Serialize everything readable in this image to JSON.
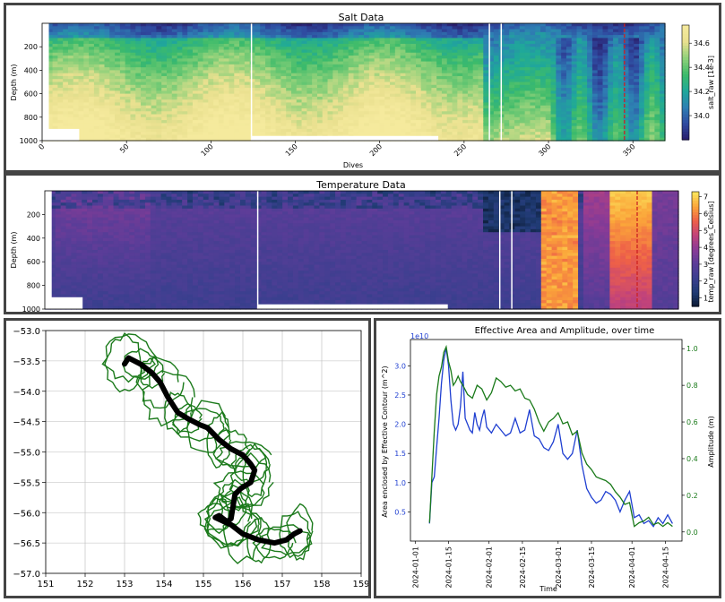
{
  "chart_data": [
    {
      "type": "heatmap",
      "title": "Salt Data",
      "xlabel": "Dives",
      "ylabel": "Depth (m)",
      "colorbar_label": "salt_raw [1e-3]",
      "xlim": [
        0,
        369
      ],
      "ylim": [
        1000,
        0
      ],
      "x_ticks": [
        "0",
        "50",
        "100",
        "150",
        "200",
        "250",
        "300",
        "350"
      ],
      "y_ticks": [
        "200",
        "400",
        "600",
        "800",
        "1000"
      ],
      "colorbar_ticks": [
        "34.0",
        "34.2",
        "34.4",
        "34.6"
      ],
      "colorbar_range": [
        33.8,
        34.75
      ],
      "colormap": [
        "#2a1d6b",
        "#2f4aa0",
        "#2e7fb3",
        "#1fa89a",
        "#3dbb6a",
        "#8fd17a",
        "#e9e08f",
        "#f5ea9d"
      ],
      "gaps_at_dive": [
        124,
        265,
        272
      ],
      "marker_dive": 345,
      "marker_color": "#cc2222"
    },
    {
      "type": "heatmap",
      "title": "Temperature Data",
      "xlabel": "",
      "ylabel": "Depth (m)",
      "colorbar_label": "temp_raw [degrees_Celsius]",
      "xlim": [
        0,
        369
      ],
      "ylim": [
        1000,
        0
      ],
      "y_ticks": [
        "200",
        "400",
        "600",
        "800",
        "1000"
      ],
      "colorbar_ticks": [
        "1",
        "2",
        "3",
        "4",
        "5",
        "6",
        "7"
      ],
      "colorbar_range": [
        0.5,
        7.3
      ],
      "colormap": [
        "#0c1a33",
        "#1f3b73",
        "#3b3f8f",
        "#5a3d98",
        "#8a3b96",
        "#c2437a",
        "#ee6048",
        "#fba63a",
        "#fbe85e"
      ],
      "gaps_at_dive": [
        124,
        265,
        272
      ],
      "marker_dive": 345,
      "marker_color": "#cc2222"
    },
    {
      "type": "line",
      "title": "",
      "xlabel": "",
      "ylabel": "",
      "xlim": [
        151,
        159
      ],
      "ylim": [
        -57.0,
        -53.0
      ],
      "x_ticks": [
        "151",
        "152",
        "153",
        "154",
        "155",
        "156",
        "157",
        "158",
        "159"
      ],
      "y_ticks": [
        "−53.0",
        "−53.5",
        "−54.0",
        "−54.5",
        "−55.0",
        "−55.5",
        "−56.0",
        "−56.5",
        "−57.0"
      ],
      "grid": true,
      "contour_color": "#1b7a1b",
      "track_color": "#000000",
      "track": [
        {
          "x": 153.0,
          "y": -53.55
        },
        {
          "x": 153.1,
          "y": -53.45
        },
        {
          "x": 153.4,
          "y": -53.55
        },
        {
          "x": 153.7,
          "y": -53.7
        },
        {
          "x": 153.9,
          "y": -53.85
        },
        {
          "x": 154.1,
          "y": -54.1
        },
        {
          "x": 154.35,
          "y": -54.35
        },
        {
          "x": 154.6,
          "y": -54.45
        },
        {
          "x": 154.9,
          "y": -54.55
        },
        {
          "x": 155.1,
          "y": -54.6
        },
        {
          "x": 155.4,
          "y": -54.8
        },
        {
          "x": 155.7,
          "y": -54.95
        },
        {
          "x": 156.0,
          "y": -55.05
        },
        {
          "x": 156.2,
          "y": -55.2
        },
        {
          "x": 156.3,
          "y": -55.3
        },
        {
          "x": 156.2,
          "y": -55.5
        },
        {
          "x": 155.95,
          "y": -55.6
        },
        {
          "x": 155.8,
          "y": -55.7
        },
        {
          "x": 155.75,
          "y": -55.9
        },
        {
          "x": 155.7,
          "y": -56.1
        },
        {
          "x": 155.6,
          "y": -56.15
        },
        {
          "x": 155.4,
          "y": -56.05
        },
        {
          "x": 155.3,
          "y": -56.08
        },
        {
          "x": 155.7,
          "y": -56.2
        },
        {
          "x": 156.0,
          "y": -56.35
        },
        {
          "x": 156.4,
          "y": -56.45
        },
        {
          "x": 156.8,
          "y": -56.5
        },
        {
          "x": 157.1,
          "y": -56.45
        },
        {
          "x": 157.3,
          "y": -56.35
        },
        {
          "x": 157.45,
          "y": -56.3
        }
      ]
    },
    {
      "type": "line",
      "title": "Effective Area and Amplitude, over time",
      "xlabel": "Time",
      "ylabel": "Area enclosed by Effective Contour (m^2)",
      "y2label": "Amplitude (m)",
      "y_offset_label": "1e10",
      "x_ticks": [
        "2024-01-01",
        "2024-01-15",
        "2024-02-01",
        "2024-02-15",
        "2024-03-01",
        "2024-03-15",
        "2024-04-01",
        "2024-04-15"
      ],
      "y_ticks": [
        "0.5",
        "1.0",
        "1.5",
        "2.0",
        "2.5",
        "3.0"
      ],
      "y2_ticks": [
        "0.0",
        "0.2",
        "0.4",
        "0.6",
        "0.8",
        "1.0"
      ],
      "ylim": [
        0.0,
        3.45
      ],
      "y2lim": [
        -0.05,
        1.05
      ],
      "xlim_days": [
        -2,
        112
      ],
      "series": [
        {
          "name": "",
          "axis": "left",
          "color": "#1f3fd1",
          "x_days": [
            6,
            7,
            8,
            9,
            10,
            11,
            12,
            13,
            14,
            15,
            16,
            17,
            18,
            19,
            20,
            21,
            22,
            23,
            24,
            25,
            26,
            27,
            28,
            29,
            30,
            32,
            34,
            36,
            38,
            40,
            42,
            44,
            46,
            48,
            50,
            52,
            54,
            56,
            58,
            60,
            62,
            64,
            66,
            68,
            70,
            72,
            74,
            76,
            78,
            80,
            82,
            84,
            86,
            88,
            90,
            92,
            94,
            96,
            98,
            100,
            102,
            104,
            106,
            108
          ],
          "values": [
            0.3,
            1.0,
            1.1,
            1.6,
            2.1,
            2.7,
            3.1,
            3.3,
            3.0,
            2.4,
            2.0,
            1.9,
            2.0,
            2.3,
            2.9,
            2.1,
            2.0,
            1.9,
            1.85,
            2.2,
            2.0,
            1.9,
            2.1,
            2.25,
            1.95,
            1.85,
            2.0,
            1.9,
            1.8,
            1.85,
            2.1,
            1.85,
            1.9,
            2.25,
            1.8,
            1.75,
            1.6,
            1.55,
            1.7,
            2.0,
            1.5,
            1.4,
            1.5,
            1.9,
            1.3,
            0.9,
            0.75,
            0.65,
            0.7,
            0.85,
            0.8,
            0.7,
            0.5,
            0.7,
            0.85,
            0.4,
            0.45,
            0.3,
            0.35,
            0.25,
            0.4,
            0.3,
            0.45,
            0.3
          ]
        },
        {
          "name": "",
          "axis": "right",
          "color": "#1a7a1a",
          "x_days": [
            6,
            7,
            8,
            9,
            10,
            11,
            12,
            13,
            14,
            15,
            16,
            17,
            18,
            19,
            20,
            22,
            24,
            26,
            28,
            30,
            32,
            34,
            36,
            38,
            40,
            42,
            44,
            46,
            48,
            50,
            52,
            54,
            56,
            58,
            60,
            62,
            64,
            66,
            68,
            70,
            72,
            74,
            76,
            78,
            80,
            82,
            84,
            86,
            88,
            90,
            92,
            94,
            96,
            98,
            100,
            102,
            104,
            106,
            108
          ],
          "values": [
            0.05,
            0.3,
            0.55,
            0.75,
            0.85,
            0.9,
            0.98,
            1.01,
            0.93,
            0.88,
            0.8,
            0.82,
            0.85,
            0.82,
            0.8,
            0.75,
            0.73,
            0.8,
            0.78,
            0.72,
            0.76,
            0.84,
            0.82,
            0.79,
            0.8,
            0.77,
            0.78,
            0.73,
            0.72,
            0.67,
            0.6,
            0.55,
            0.6,
            0.62,
            0.65,
            0.59,
            0.6,
            0.53,
            0.55,
            0.43,
            0.37,
            0.34,
            0.3,
            0.29,
            0.28,
            0.26,
            0.22,
            0.19,
            0.15,
            0.16,
            0.03,
            0.05,
            0.06,
            0.08,
            0.04,
            0.05,
            0.03,
            0.05,
            0.03
          ]
        }
      ]
    }
  ]
}
